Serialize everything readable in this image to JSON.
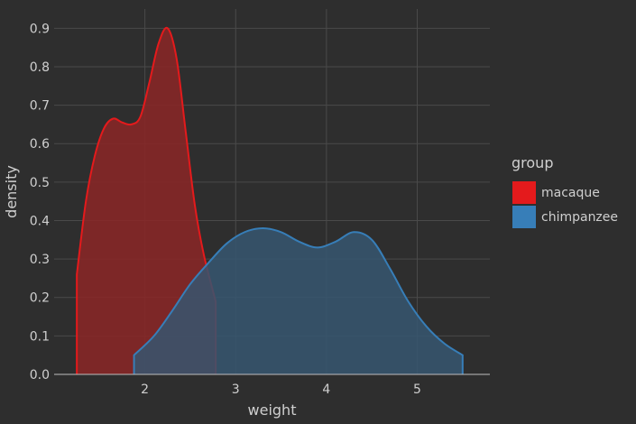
{
  "chart_data": {
    "type": "area",
    "xlabel": "weight",
    "ylabel": "density",
    "xlim": [
      1.0,
      5.8
    ],
    "ylim": [
      0.0,
      0.95
    ],
    "xticks": [
      2,
      3,
      4,
      5
    ],
    "yticks": [
      0.0,
      0.1,
      0.2,
      0.3,
      0.4,
      0.5,
      0.6,
      0.7,
      0.8,
      0.9
    ],
    "xtick_labels": [
      "2",
      "3",
      "4",
      "5"
    ],
    "ytick_labels": [
      "0.0",
      "0.1",
      "0.2",
      "0.3",
      "0.4",
      "0.5",
      "0.6",
      "0.7",
      "0.8",
      "0.9"
    ],
    "grid": true,
    "legend": {
      "title": "group",
      "placement": "right"
    },
    "series": [
      {
        "name": "macaque",
        "color": "#e41a1c",
        "fill": "#8b2626",
        "x": [
          1.25,
          1.35,
          1.45,
          1.55,
          1.65,
          1.75,
          1.85,
          1.95,
          2.05,
          2.15,
          2.25,
          2.35,
          2.45,
          2.55,
          2.65,
          2.78
        ],
        "y": [
          0.26,
          0.45,
          0.57,
          0.64,
          0.665,
          0.655,
          0.65,
          0.67,
          0.76,
          0.86,
          0.9,
          0.82,
          0.63,
          0.44,
          0.31,
          0.19
        ]
      },
      {
        "name": "chimpanzee",
        "color": "#377eb8",
        "fill": "#365670",
        "x": [
          1.88,
          2.1,
          2.3,
          2.5,
          2.7,
          2.9,
          3.1,
          3.3,
          3.5,
          3.7,
          3.9,
          4.1,
          4.3,
          4.5,
          4.7,
          4.9,
          5.1,
          5.3,
          5.5
        ],
        "y": [
          0.05,
          0.1,
          0.165,
          0.235,
          0.29,
          0.34,
          0.37,
          0.38,
          0.37,
          0.345,
          0.33,
          0.345,
          0.37,
          0.35,
          0.275,
          0.19,
          0.125,
          0.08,
          0.05
        ]
      }
    ]
  }
}
